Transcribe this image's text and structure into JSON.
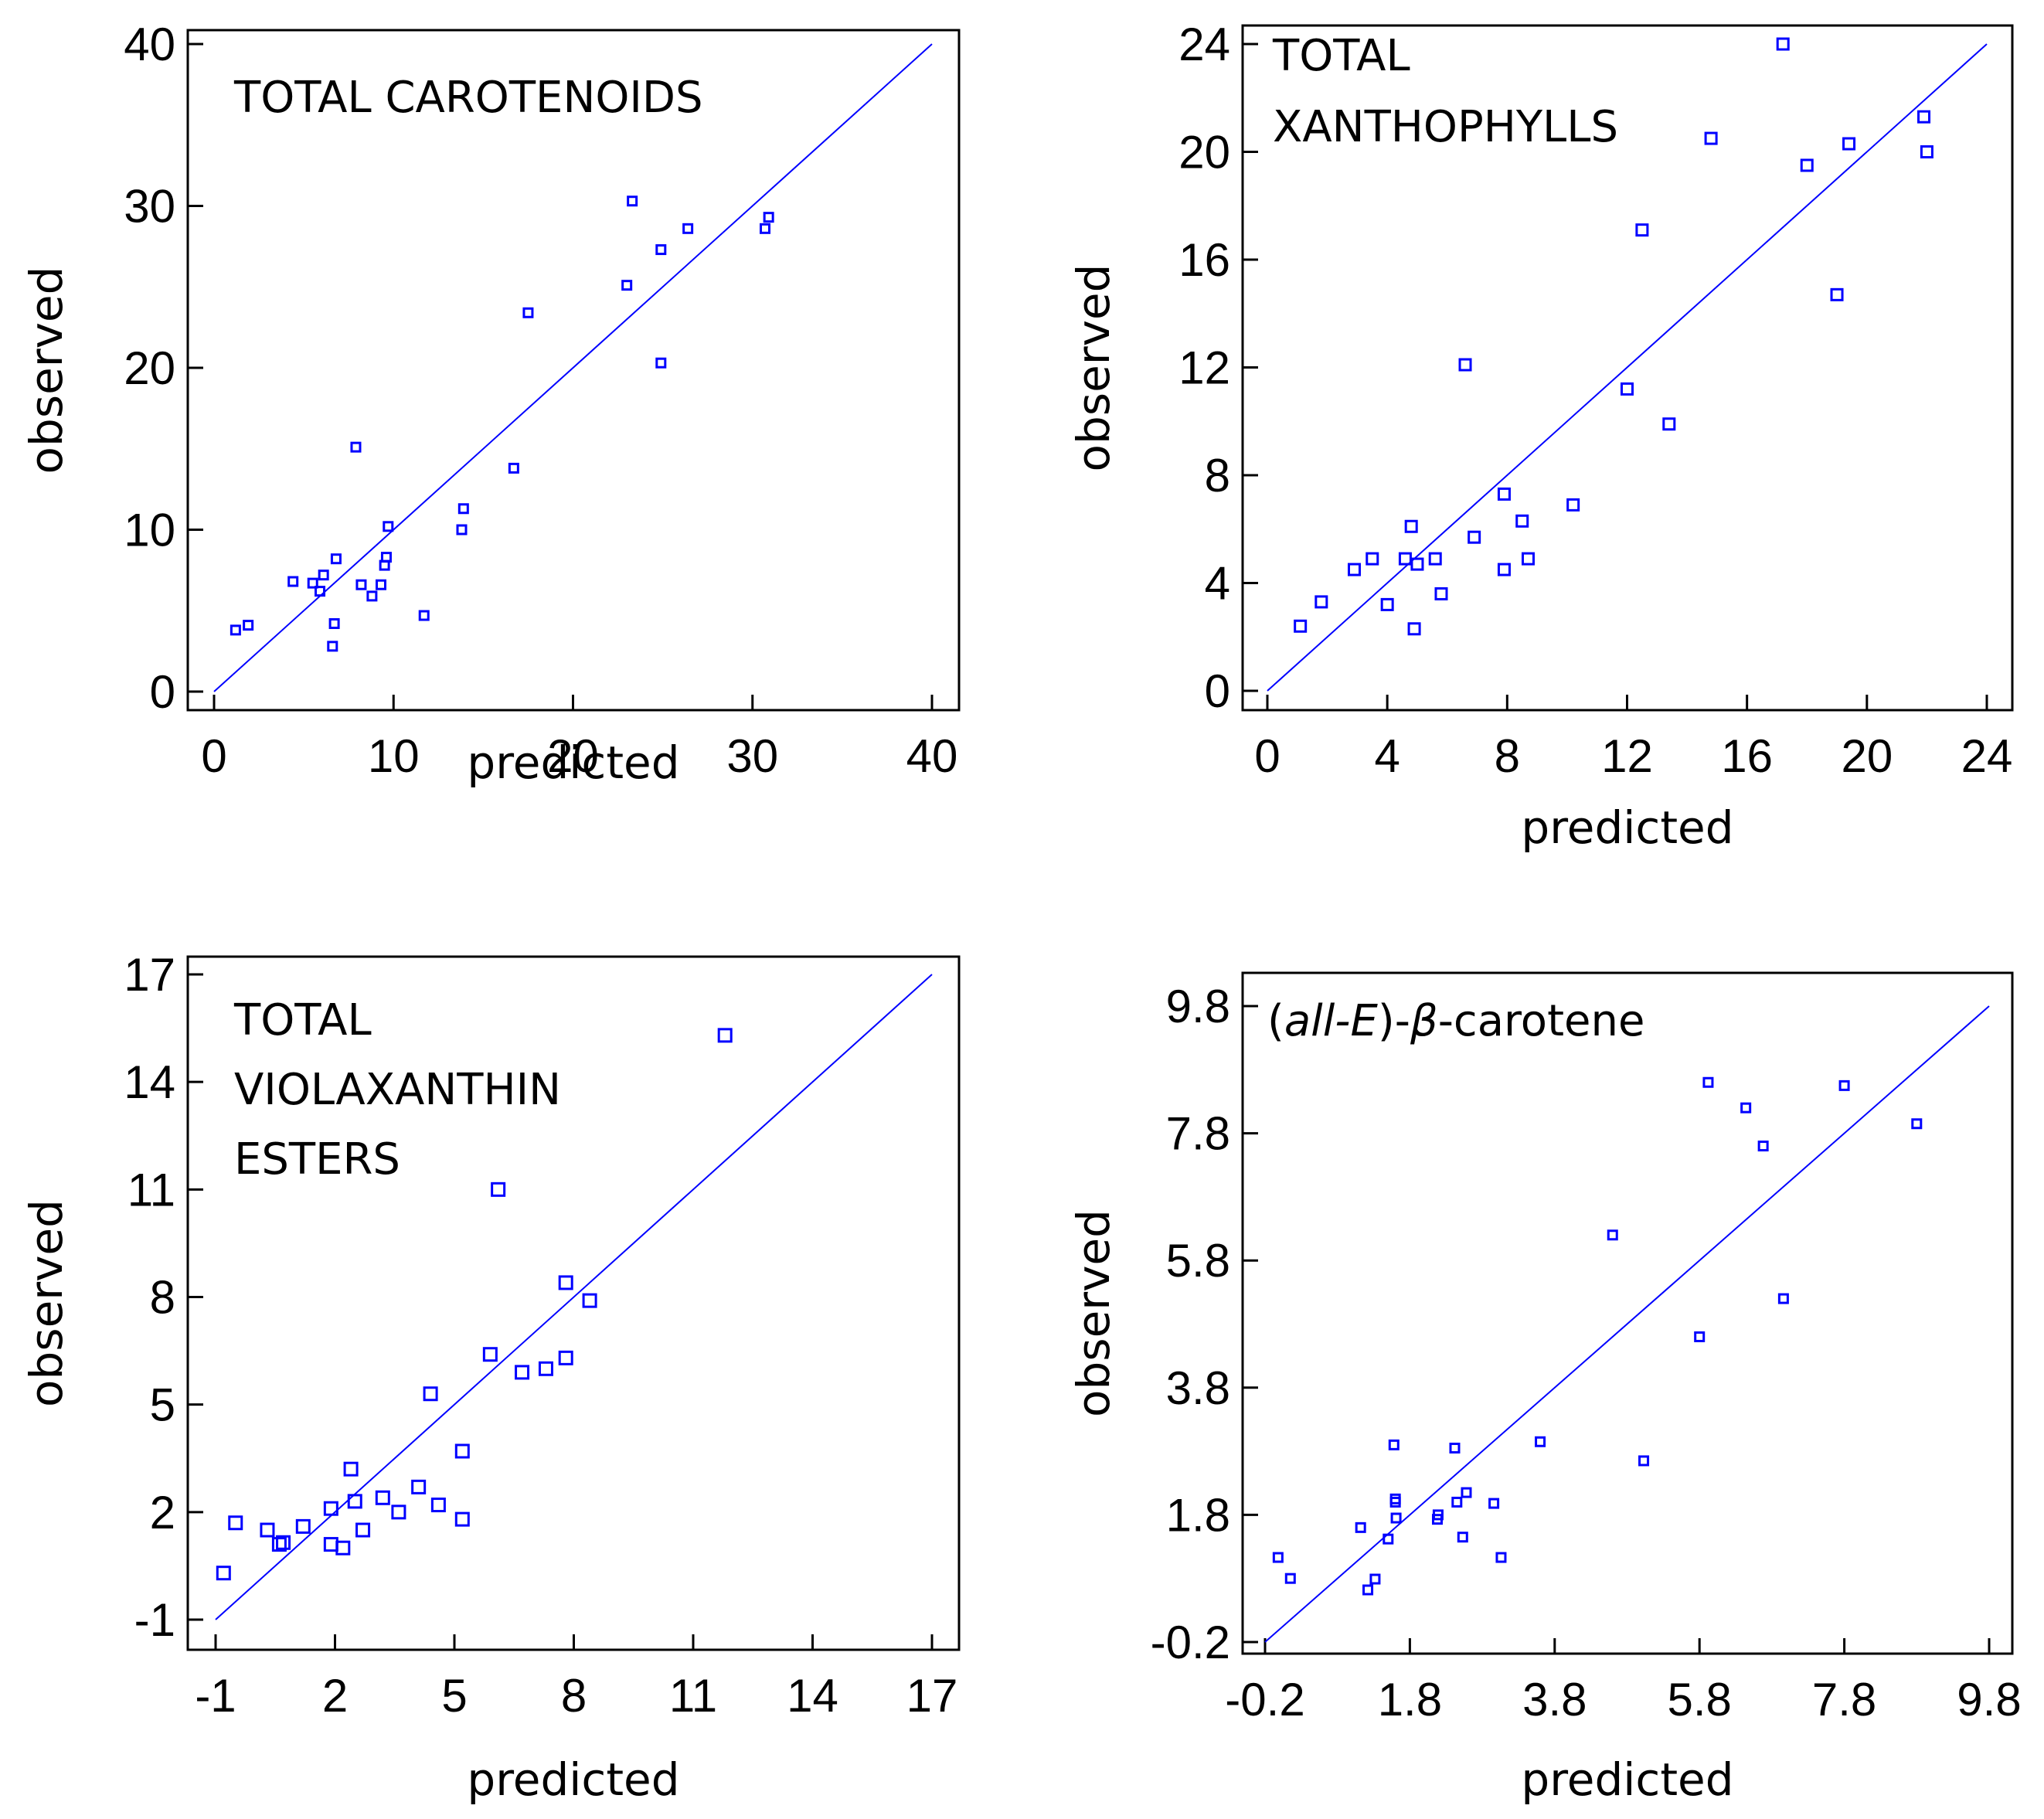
{
  "chart_data": [
    {
      "type": "scatter",
      "title": "TOTAL CAROTENOIDS",
      "xlabel": "predicted",
      "ylabel": "observed",
      "xlim": [
        0,
        40
      ],
      "ylim": [
        0,
        40
      ],
      "xticks": [
        "0",
        "10",
        "20",
        "30",
        "40"
      ],
      "yticks": [
        "0",
        "10",
        "20",
        "30",
        "40"
      ],
      "reference_line": [
        [
          0,
          0
        ],
        [
          40,
          40
        ]
      ],
      "points": [
        [
          1.2,
          3.8
        ],
        [
          1.9,
          4.1
        ],
        [
          4.4,
          6.8
        ],
        [
          5.5,
          6.7
        ],
        [
          5.9,
          6.2
        ],
        [
          6.1,
          7.2
        ],
        [
          6.6,
          2.8
        ],
        [
          6.7,
          4.2
        ],
        [
          6.8,
          8.2
        ],
        [
          8.2,
          6.6
        ],
        [
          8.8,
          5.9
        ],
        [
          9.3,
          6.6
        ],
        [
          9.5,
          7.8
        ],
        [
          9.6,
          8.3
        ],
        [
          9.7,
          10.2
        ],
        [
          7.9,
          15.1
        ],
        [
          11.7,
          4.7
        ],
        [
          13.8,
          10.0
        ],
        [
          13.9,
          11.3
        ],
        [
          16.7,
          13.8
        ],
        [
          17.5,
          23.4
        ],
        [
          23.0,
          25.1
        ],
        [
          23.3,
          30.3
        ],
        [
          24.9,
          27.3
        ],
        [
          24.9,
          20.3
        ],
        [
          26.4,
          28.6
        ],
        [
          30.7,
          28.6
        ],
        [
          30.9,
          29.3
        ]
      ]
    },
    {
      "type": "scatter",
      "title_lines": [
        "TOTAL",
        "XANTHOPHYLLS"
      ],
      "xlabel": "predicted",
      "ylabel": "observed",
      "xlim": [
        0,
        24
      ],
      "ylim": [
        0,
        24
      ],
      "xticks": [
        "0",
        "4",
        "8",
        "12",
        "16",
        "20",
        "24"
      ],
      "yticks": [
        "0",
        "4",
        "8",
        "12",
        "16",
        "20",
        "24"
      ],
      "reference_line": [
        [
          0,
          0
        ],
        [
          24,
          24
        ]
      ],
      "points": [
        [
          1.1,
          2.4
        ],
        [
          1.8,
          3.3
        ],
        [
          2.9,
          4.5
        ],
        [
          3.5,
          4.9
        ],
        [
          4.0,
          3.2
        ],
        [
          4.6,
          4.9
        ],
        [
          4.8,
          6.1
        ],
        [
          4.9,
          2.3
        ],
        [
          5.0,
          4.7
        ],
        [
          5.6,
          4.9
        ],
        [
          5.8,
          3.6
        ],
        [
          6.6,
          12.1
        ],
        [
          6.9,
          5.7
        ],
        [
          7.9,
          7.3
        ],
        [
          7.9,
          4.5
        ],
        [
          8.5,
          6.3
        ],
        [
          8.7,
          4.9
        ],
        [
          10.2,
          6.9
        ],
        [
          12.0,
          11.2
        ],
        [
          12.5,
          17.1
        ],
        [
          13.4,
          9.9
        ],
        [
          14.8,
          20.5
        ],
        [
          17.2,
          24.0
        ],
        [
          18.0,
          19.5
        ],
        [
          19.0,
          14.7
        ],
        [
          19.4,
          20.3
        ],
        [
          21.9,
          21.3
        ],
        [
          22.0,
          20.0
        ]
      ]
    },
    {
      "type": "scatter",
      "title_lines": [
        "TOTAL",
        "VIOLAXANTHIN",
        "ESTERS"
      ],
      "xlabel": "predicted",
      "ylabel": "observed",
      "xlim": [
        -1,
        17
      ],
      "ylim": [
        -1,
        17
      ],
      "xticks": [
        "-1",
        "2",
        "5",
        "8",
        "11",
        "14",
        "17"
      ],
      "yticks": [
        "-1",
        "2",
        "5",
        "8",
        "11",
        "14",
        "17"
      ],
      "reference_line": [
        [
          -1,
          -1
        ],
        [
          17,
          17
        ]
      ],
      "points": [
        [
          -0.8,
          0.3
        ],
        [
          -0.5,
          1.7
        ],
        [
          0.3,
          1.5
        ],
        [
          0.6,
          1.1
        ],
        [
          0.7,
          1.15
        ],
        [
          1.2,
          1.6
        ],
        [
          1.9,
          1.1
        ],
        [
          1.9,
          2.1
        ],
        [
          2.2,
          1.0
        ],
        [
          2.4,
          3.2
        ],
        [
          2.5,
          2.3
        ],
        [
          2.7,
          1.5
        ],
        [
          3.2,
          2.4
        ],
        [
          3.6,
          2.0
        ],
        [
          4.1,
          2.7
        ],
        [
          4.4,
          5.3
        ],
        [
          4.6,
          2.2
        ],
        [
          5.2,
          3.7
        ],
        [
          5.2,
          1.8
        ],
        [
          5.9,
          6.4
        ],
        [
          6.1,
          11.0
        ],
        [
          6.7,
          5.9
        ],
        [
          7.3,
          6.0
        ],
        [
          7.8,
          6.3
        ],
        [
          7.8,
          8.4
        ],
        [
          8.4,
          7.9
        ],
        [
          11.8,
          15.3
        ]
      ]
    },
    {
      "type": "scatter",
      "title": "(all-E)-β-carotene",
      "xlabel": "predicted",
      "ylabel": "observed",
      "xlim": [
        -0.2,
        9.8
      ],
      "ylim": [
        -0.2,
        9.8
      ],
      "xticks": [
        "-0.2",
        "1.8",
        "3.8",
        "5.8",
        "7.8",
        "9.8"
      ],
      "yticks": [
        "-0.2",
        "1.8",
        "3.8",
        "5.8",
        "7.8",
        "9.8"
      ],
      "reference_line": [
        [
          -0.2,
          -0.2
        ],
        [
          9.8,
          9.8
        ]
      ],
      "points": [
        [
          -0.02,
          1.13
        ],
        [
          0.15,
          0.8
        ],
        [
          1.12,
          1.6
        ],
        [
          1.22,
          0.62
        ],
        [
          1.32,
          0.79
        ],
        [
          1.5,
          1.42
        ],
        [
          1.58,
          2.9
        ],
        [
          1.6,
          2.05
        ],
        [
          1.6,
          2.0
        ],
        [
          1.61,
          1.75
        ],
        [
          2.18,
          1.73
        ],
        [
          2.19,
          1.8
        ],
        [
          2.42,
          2.85
        ],
        [
          2.45,
          2.0
        ],
        [
          2.53,
          1.45
        ],
        [
          2.58,
          2.15
        ],
        [
          2.96,
          1.98
        ],
        [
          3.06,
          1.13
        ],
        [
          3.6,
          2.95
        ],
        [
          4.6,
          6.2
        ],
        [
          5.03,
          2.65
        ],
        [
          5.8,
          4.6
        ],
        [
          5.92,
          8.6
        ],
        [
          6.44,
          8.2
        ],
        [
          6.68,
          7.6
        ],
        [
          6.96,
          5.2
        ],
        [
          7.8,
          8.55
        ],
        [
          8.8,
          7.95
        ]
      ]
    }
  ]
}
